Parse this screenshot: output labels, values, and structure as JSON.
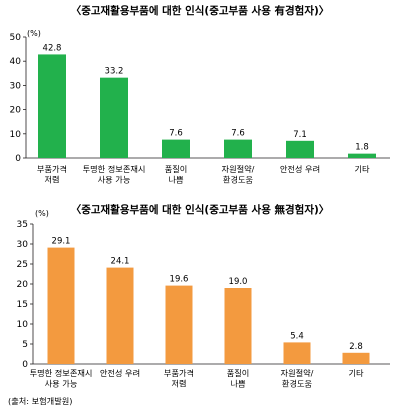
{
  "chart_data": [
    {
      "type": "bar",
      "title": "〈중고재활용부품에 대한 인식(중고부품 사용 有경험자)〉",
      "unit": "(%)",
      "ylim": [
        0,
        50
      ],
      "yticks": [
        0,
        10,
        20,
        30,
        40,
        50
      ],
      "categories": [
        "부품가격\n저렴",
        "투명한 정보존재시\n사용 가능",
        "품질이\n나쁨",
        "자원절약/\n환경도움",
        "안전성 우려",
        "기타"
      ],
      "values": [
        42.8,
        33.2,
        7.6,
        7.6,
        7.1,
        1.8
      ],
      "value_labels": [
        "42.8",
        "33.2",
        "7.6",
        "7.6",
        "7.1",
        "1.8"
      ],
      "color": "#22b14c"
    },
    {
      "type": "bar",
      "title": "〈중고재활용부품에 대한 인식(중고부품 사용 無경험자)〉",
      "unit": "(%)",
      "ylim": [
        0,
        35
      ],
      "yticks": [
        0,
        5,
        10,
        15,
        20,
        25,
        30,
        35
      ],
      "categories": [
        "투명한 정보존재시\n사용 가능",
        "안전성 우려",
        "부품가격\n저렴",
        "품질이\n나쁨",
        "자원절약/\n환경도움",
        "기타"
      ],
      "values": [
        29.1,
        24.1,
        19.6,
        19.0,
        5.4,
        2.8
      ],
      "value_labels": [
        "29.1",
        "24.1",
        "19.6",
        "19.0",
        "5.4",
        "2.8"
      ],
      "color": "#f39a3f"
    }
  ],
  "source": "(출처: 보험개발원)"
}
